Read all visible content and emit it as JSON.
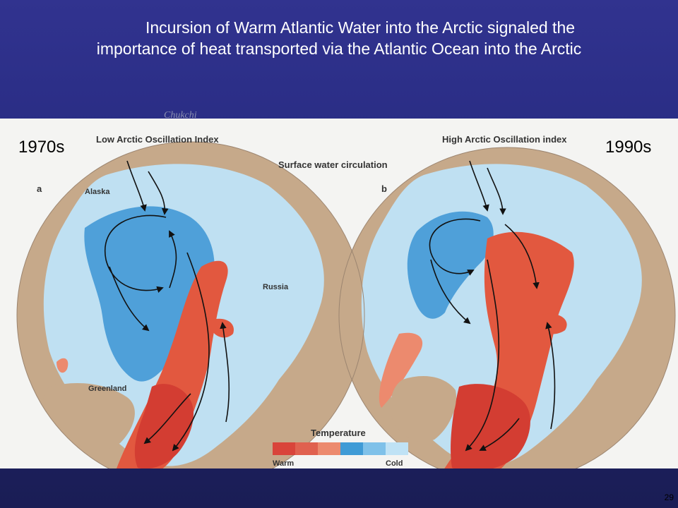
{
  "slide": {
    "title_line1": "Incursion of Warm Atlantic Water into the Arctic signaled the",
    "title_line2": "importance of heat transported via the Atlantic Ocean into the Arctic",
    "faint_overlay_text": "Chukchi",
    "page_number": "29"
  },
  "figure": {
    "left_label": "1970s",
    "right_label": "1990s",
    "left_panel_title": "Low Arctic Oscillation Index",
    "right_panel_title": "High Arctic Oscillation index",
    "center_title": "Surface water circulation",
    "left_panel_letter": "a",
    "right_panel_letter": "b",
    "region_labels": {
      "alaska": "Alaska",
      "russia": "Russia",
      "greenland": "Greenland"
    },
    "legend": {
      "title": "Temperature",
      "warm_label": "Warm",
      "cold_label": "Cold",
      "colors": [
        "#d9443a",
        "#e0614f",
        "#ec8a6e",
        "#3f9bd6",
        "#7fc1e9",
        "#bfe2f5"
      ]
    }
  },
  "colors": {
    "background_blue": "#2b2f8c",
    "land": "#c6a98a",
    "ocean_light": "#bfe0f2",
    "ocean_mid": "#7fc0e6",
    "ocean_deep": "#4f9fd8",
    "warm_water": "#e2583f",
    "warm_water_dark": "#d33d32"
  }
}
